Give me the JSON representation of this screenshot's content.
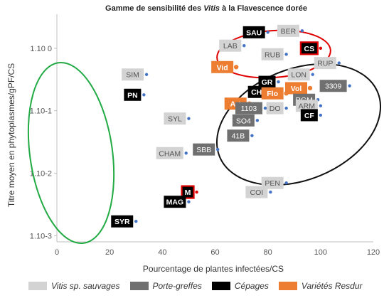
{
  "chart_data": {
    "type": "scatter",
    "title_parts": [
      "Gamme de sensibilité des ",
      "Vitis",
      " à la Flavescence dorée"
    ],
    "xlabel": "Pourcentage de plantes infectées/CS",
    "ylabel": "Titre moyen en phytoplasmes/gPF/CS",
    "xlim": [
      0,
      120
    ],
    "x_ticks": [
      0,
      20,
      40,
      60,
      80,
      100,
      120
    ],
    "y_scale": "log",
    "ylim": [
      0.0008,
      3.5
    ],
    "y_ticks": [
      {
        "value": 0.001,
        "label": "1.10-3"
      },
      {
        "value": 0.01,
        "label": "1.10-2"
      },
      {
        "value": 0.1,
        "label": "1.10-1"
      },
      {
        "value": 1,
        "label": "1.10 0"
      }
    ],
    "grid": false,
    "colors": {
      "wild": "#d3d3d3",
      "rootstock": "#707070",
      "cepage": "#000000",
      "resdur": "#ed7d31",
      "wild_point": "#4472c4",
      "resdur_point": "#ed7d31",
      "red_highlight": "#e00000",
      "green_ellipse": "#22aa44",
      "red_ellipse": "#e00000",
      "black_ellipse": "#111111"
    },
    "legend": [
      {
        "key": "wild",
        "label": "Vitis sp. sauvages"
      },
      {
        "key": "rootstock",
        "label": "Porte-greffes"
      },
      {
        "key": "cepage",
        "label": "Cépages"
      },
      {
        "key": "resdur",
        "label": "Variétés Resdur"
      }
    ],
    "points": [
      {
        "label": "SIM",
        "x": 34,
        "y": 0.38,
        "cat": "wild"
      },
      {
        "label": "PN",
        "x": 33,
        "y": 0.18,
        "cat": "cepage"
      },
      {
        "label": "SYL",
        "x": 50,
        "y": 0.075,
        "cat": "wild"
      },
      {
        "label": "SBB",
        "x": 61,
        "y": 0.024,
        "cat": "rootstock"
      },
      {
        "label": "CHAM",
        "x": 49,
        "y": 0.021,
        "cat": "wild"
      },
      {
        "label": "M",
        "x": 53,
        "y": 0.005,
        "cat": "cepage",
        "highlight": true
      },
      {
        "label": "MAG",
        "x": 50,
        "y": 0.0035,
        "cat": "cepage"
      },
      {
        "label": "SYR",
        "x": 30,
        "y": 0.0017,
        "cat": "cepage"
      },
      {
        "label": "SAU",
        "x": 80,
        "y": 1.8,
        "cat": "cepage"
      },
      {
        "label": "BER",
        "x": 93,
        "y": 1.9,
        "cat": "wild"
      },
      {
        "label": "LAB",
        "x": 71,
        "y": 1.1,
        "cat": "wild"
      },
      {
        "label": "CS",
        "x": 100,
        "y": 1.0,
        "cat": "cepage",
        "highlight": true
      },
      {
        "label": "RUB",
        "x": 87,
        "y": 0.8,
        "cat": "wild"
      },
      {
        "label": "Vid",
        "x": 68,
        "y": 0.5,
        "cat": "resdur"
      },
      {
        "label": "RUP",
        "x": 107,
        "y": 0.58,
        "cat": "wild"
      },
      {
        "label": "LON",
        "x": 97,
        "y": 0.38,
        "cat": "wild"
      },
      {
        "label": "GR",
        "x": 84,
        "y": 0.29,
        "cat": "cepage"
      },
      {
        "label": "3309",
        "x": 111,
        "y": 0.25,
        "cat": "rootstock"
      },
      {
        "label": "Vol",
        "x": 96,
        "y": 0.23,
        "cat": "resdur"
      },
      {
        "label": "CH",
        "x": 80,
        "y": 0.2,
        "cat": "cepage"
      },
      {
        "label": "Flo",
        "x": 87,
        "y": 0.19,
        "cat": "resdur"
      },
      {
        "label": "RGM",
        "x": 99,
        "y": 0.15,
        "cat": "rootstock"
      },
      {
        "label": "Art",
        "x": 73,
        "y": 0.13,
        "cat": "resdur"
      },
      {
        "label": "ARM",
        "x": 100,
        "y": 0.12,
        "cat": "wild"
      },
      {
        "label": "DO",
        "x": 87,
        "y": 0.11,
        "cat": "wild"
      },
      {
        "label": "1103",
        "x": 79,
        "y": 0.11,
        "cat": "rootstock"
      },
      {
        "label": "SO4",
        "x": 76,
        "y": 0.07,
        "cat": "rootstock"
      },
      {
        "label": "CF",
        "x": 100,
        "y": 0.085,
        "cat": "cepage"
      },
      {
        "label": "41B",
        "x": 74,
        "y": 0.04,
        "cat": "rootstock"
      },
      {
        "label": "PEN",
        "x": 87,
        "y": 0.007,
        "cat": "wild"
      },
      {
        "label": "COI",
        "x": 81,
        "y": 0.005,
        "cat": "wild"
      }
    ]
  }
}
